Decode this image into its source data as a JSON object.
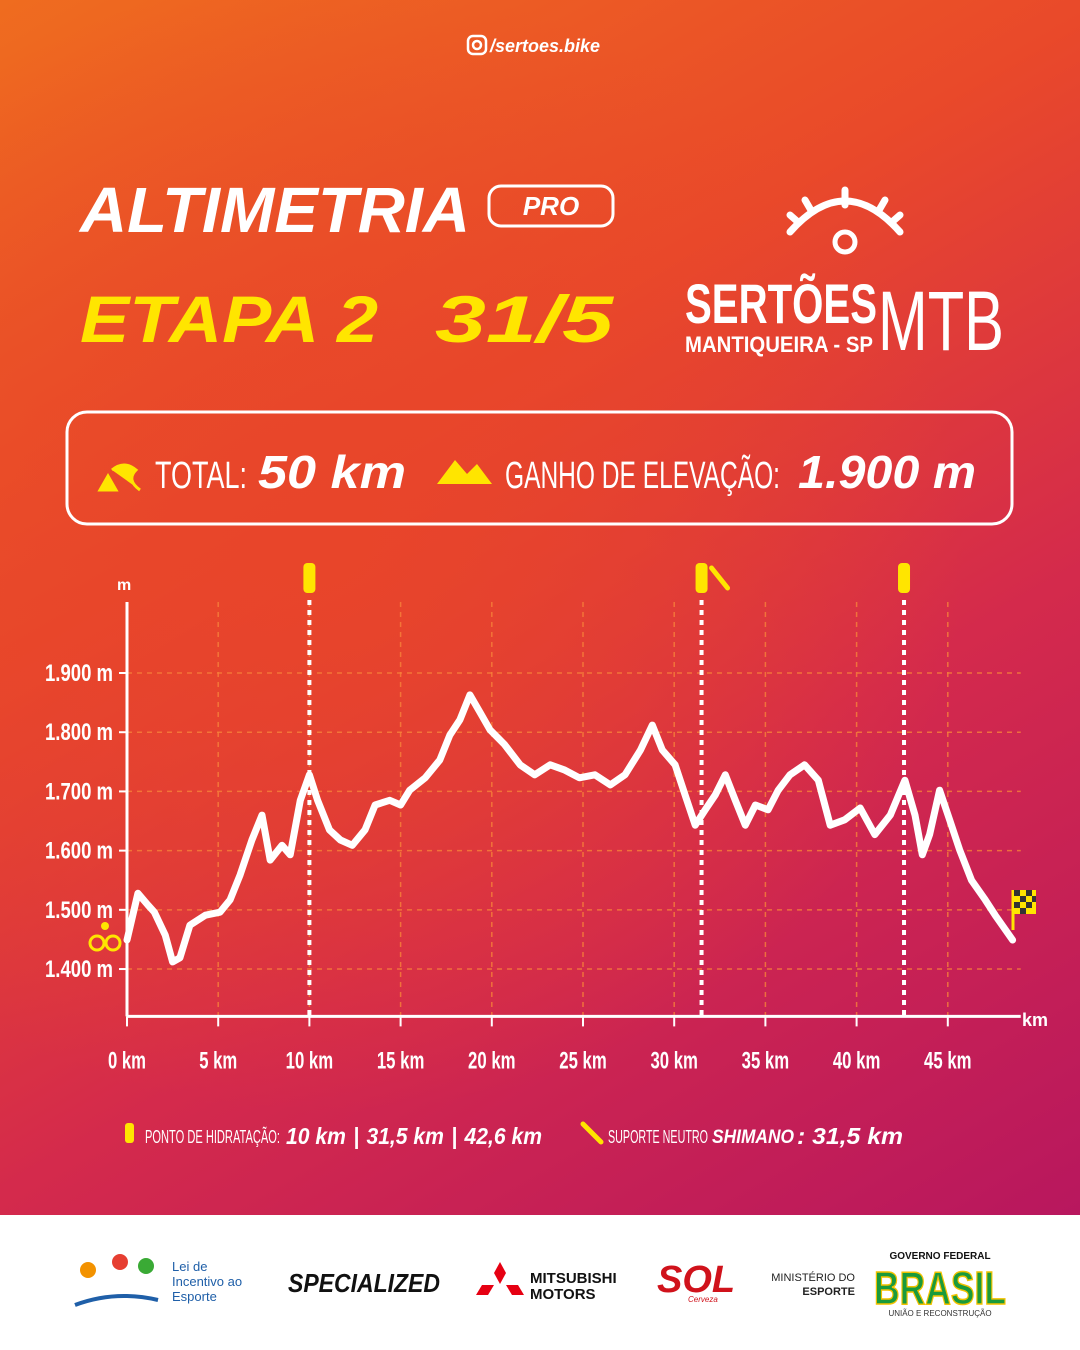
{
  "header": {
    "handle": "/sertoes.bike",
    "title": "ALTIMETRIA",
    "badge": "PRO",
    "stage": "ETAPA 2",
    "date": "31/5"
  },
  "logo": {
    "name": "SERTÕES",
    "suffix": "MTB",
    "place": "MANTIQUEIRA - SP"
  },
  "stats": {
    "total_label": "TOTAL:",
    "total_value": "50 km",
    "gain_label": "GANHO DE ELEVAÇÃO:",
    "gain_value": "1.900 m"
  },
  "chart_data": {
    "type": "line",
    "y_label": "m",
    "x_label": "km",
    "x": [
      0,
      0.6,
      1.15,
      1.5,
      2.1,
      2.5,
      2.9,
      3.45,
      4.3,
      5.1,
      5.65,
      6.2,
      6.85,
      7.4,
      7.85,
      8.5,
      8.95,
      9.5,
      10,
      10.45,
      11.1,
      11.7,
      12.35,
      13.05,
      13.6,
      14.4,
      15,
      15.5,
      16.35,
      17.15,
      17.7,
      18.25,
      18.8,
      19.35,
      19.9,
      20.7,
      21.55,
      22.35,
      23.2,
      24,
      24.8,
      25.65,
      26.5,
      27.3,
      28.15,
      28.8,
      29.35,
      30.05,
      30.6,
      31.15,
      31.7,
      32.25,
      32.8,
      33.35,
      33.9,
      34.45,
      35.15,
      35.7,
      36.35,
      37.15,
      37.9,
      38.55,
      39.35,
      40.2,
      41,
      41.85,
      42.65,
      43.2,
      43.6,
      44,
      44.55,
      45.1,
      45.65,
      46.3,
      47.05,
      47.6,
      48.55
    ],
    "series": [
      {
        "color": "#ffffff",
        "values": [
          1449,
          1528,
          1508,
          1496,
          1457,
          1412,
          1419,
          1474,
          1491,
          1496,
          1517,
          1559,
          1618,
          1660,
          1584,
          1609,
          1593,
          1685,
          1728,
          1685,
          1635,
          1618,
          1609,
          1635,
          1677,
          1685,
          1677,
          1702,
          1723,
          1753,
          1795,
          1821,
          1863,
          1834,
          1804,
          1779,
          1745,
          1728,
          1745,
          1736,
          1723,
          1728,
          1711,
          1728,
          1770,
          1812,
          1770,
          1745,
          1694,
          1643,
          1669,
          1694,
          1728,
          1685,
          1643,
          1677,
          1669,
          1702,
          1728,
          1745,
          1719,
          1643,
          1652,
          1672,
          1627,
          1660,
          1719,
          1660,
          1593,
          1627,
          1702,
          1652,
          1601,
          1550,
          1517,
          1491,
          1449
        ]
      }
    ],
    "xlim": [
      0,
      49
    ],
    "ylim": [
      1320,
      2020
    ],
    "xticks": [
      {
        "value": 0,
        "label": "0 km"
      },
      {
        "value": 5,
        "label": "5 km"
      },
      {
        "value": 10,
        "label": "10 km"
      },
      {
        "value": 15,
        "label": "15 km"
      },
      {
        "value": 20,
        "label": "20 km"
      },
      {
        "value": 25,
        "label": "25 km"
      },
      {
        "value": 30,
        "label": "30 km"
      },
      {
        "value": 35,
        "label": "35 km"
      },
      {
        "value": 40,
        "label": "40 km"
      },
      {
        "value": 45,
        "label": "45 km"
      }
    ],
    "yticks": [
      {
        "value": 1400,
        "label": "1.400 m"
      },
      {
        "value": 1500,
        "label": "1.500 m"
      },
      {
        "value": 1600,
        "label": "1.600 m"
      },
      {
        "value": 1700,
        "label": "1.700 m"
      },
      {
        "value": 1800,
        "label": "1.800 m"
      },
      {
        "value": 1900,
        "label": "1.900 m"
      }
    ],
    "grid": true,
    "grid_color": "#f7813a",
    "hydration_label": "PONTO DE HIDRATAÇÃO:",
    "separator": "|",
    "hydration_points": [
      {
        "value": 10,
        "label": "10 km"
      },
      {
        "value": 31.5,
        "label": "31,5 km"
      },
      {
        "value": 42.6,
        "label": "42,6 km"
      }
    ],
    "support": {
      "label": "SUPORTE NEUTRO",
      "brand": "SHIMANO",
      "value": 31.5,
      "value_label": ": 31,5 km"
    }
  },
  "sponsors": {
    "lei": [
      "Lei de",
      "Incentivo ao",
      "Esporte"
    ],
    "specialized": "SPECIALIZED",
    "mitsubishi": [
      "MITSUBISHI",
      "MOTORS"
    ],
    "sol": "SOL",
    "sol_sub": "Cerveza",
    "ministerio": [
      "MINISTÉRIO DO",
      "ESPORTE"
    ],
    "gov_top": "GOVERNO FEDERAL",
    "gov_main": "BRASIL",
    "gov_sub": "UNIÃO E RECONSTRUÇÃO"
  }
}
